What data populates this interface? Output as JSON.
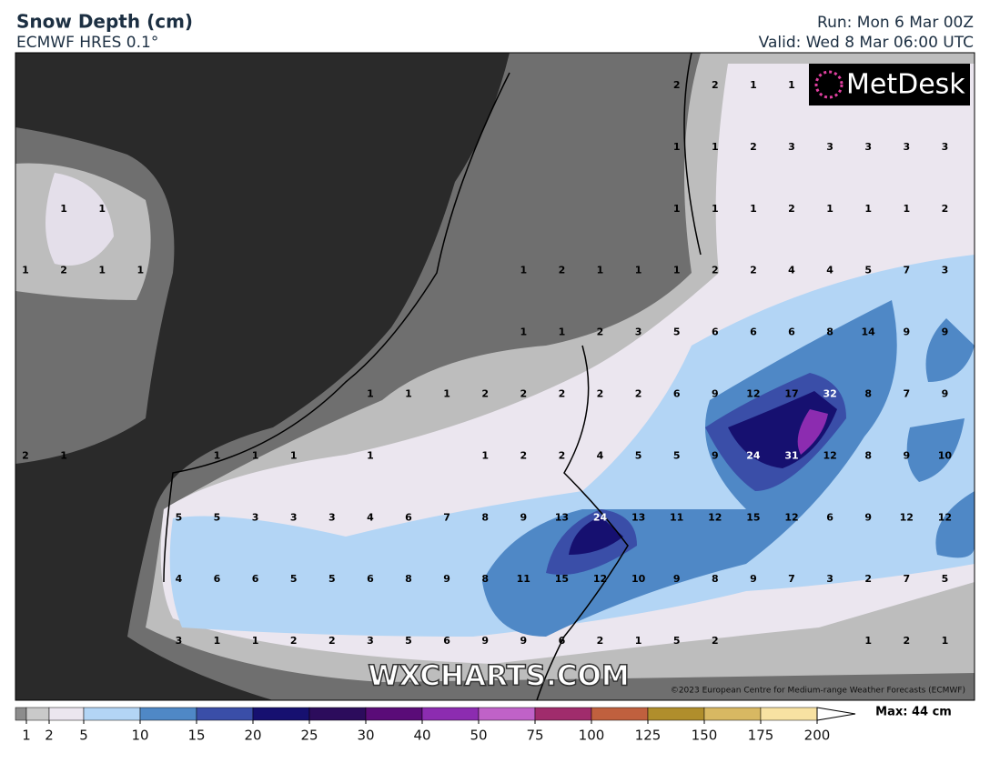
{
  "header": {
    "title": "Snow Depth (cm)",
    "subtitle": "ECMWF HRES 0.1°",
    "run": "Run: Mon 6 Mar 00Z",
    "valid": "Valid: Wed 8 Mar 06:00 UTC"
  },
  "map": {
    "logo": "MetDesk",
    "watermark": "WXCHARTS.COM",
    "copyright": "©2023 European Centre for Medium-range Weather Forecasts (ECMWF)",
    "grid_values": [
      [
        null,
        null,
        null,
        null,
        null,
        null,
        null,
        null,
        null,
        null,
        null,
        null,
        null,
        null,
        null,
        null,
        null,
        2,
        2,
        1,
        1,
        null,
        null,
        null,
        null
      ],
      [
        null,
        null,
        null,
        null,
        null,
        null,
        null,
        null,
        null,
        null,
        null,
        null,
        null,
        null,
        null,
        null,
        null,
        1,
        1,
        2,
        3,
        3,
        3,
        3,
        3
      ],
      [
        null,
        1,
        1,
        null,
        null,
        null,
        null,
        null,
        null,
        null,
        null,
        null,
        null,
        null,
        null,
        null,
        null,
        1,
        1,
        1,
        2,
        1,
        1,
        1,
        2
      ],
      [
        1,
        2,
        1,
        1,
        null,
        null,
        null,
        null,
        null,
        null,
        null,
        null,
        null,
        1,
        2,
        1,
        1,
        1,
        2,
        2,
        4,
        4,
        5,
        7,
        3
      ],
      [
        null,
        null,
        null,
        null,
        null,
        null,
        null,
        null,
        null,
        null,
        null,
        null,
        null,
        1,
        1,
        2,
        3,
        5,
        6,
        6,
        6,
        8,
        14,
        9,
        9
      ],
      [
        null,
        null,
        null,
        null,
        null,
        null,
        null,
        null,
        null,
        1,
        1,
        1,
        2,
        2,
        2,
        2,
        2,
        6,
        9,
        12,
        17,
        32,
        8,
        7,
        9
      ],
      [
        2,
        1,
        null,
        null,
        null,
        1,
        1,
        1,
        null,
        1,
        null,
        null,
        1,
        2,
        2,
        4,
        5,
        5,
        9,
        24,
        31,
        12,
        8,
        9,
        10
      ],
      [
        null,
        null,
        null,
        null,
        5,
        5,
        3,
        3,
        3,
        4,
        6,
        7,
        8,
        9,
        13,
        24,
        13,
        11,
        12,
        15,
        12,
        6,
        9,
        12,
        12
      ],
      [
        null,
        null,
        null,
        null,
        4,
        6,
        6,
        5,
        5,
        6,
        8,
        9,
        8,
        11,
        15,
        12,
        10,
        9,
        8,
        9,
        7,
        3,
        2,
        7,
        5
      ],
      [
        null,
        null,
        null,
        null,
        3,
        1,
        1,
        2,
        2,
        3,
        5,
        6,
        9,
        9,
        6,
        2,
        1,
        5,
        2,
        null,
        null,
        null,
        1,
        2,
        1
      ]
    ]
  },
  "legend": {
    "levels": [
      1,
      2,
      5,
      10,
      15,
      20,
      25,
      30,
      40,
      50,
      75,
      100,
      125,
      150,
      175,
      200
    ],
    "colors": [
      "#8c8c8c",
      "#c9c9c9",
      "#ebe6ef",
      "#b3d5f5",
      "#4f88c6",
      "#3a4ea8",
      "#161070",
      "#2c0c5c",
      "#5a0c78",
      "#8c2cb0",
      "#c062c8",
      "#a02c6c",
      "#c0603e",
      "#b08e2c",
      "#d8b862",
      "#f8e2a2",
      "#ffffff"
    ],
    "max": "Max: 44 cm"
  }
}
